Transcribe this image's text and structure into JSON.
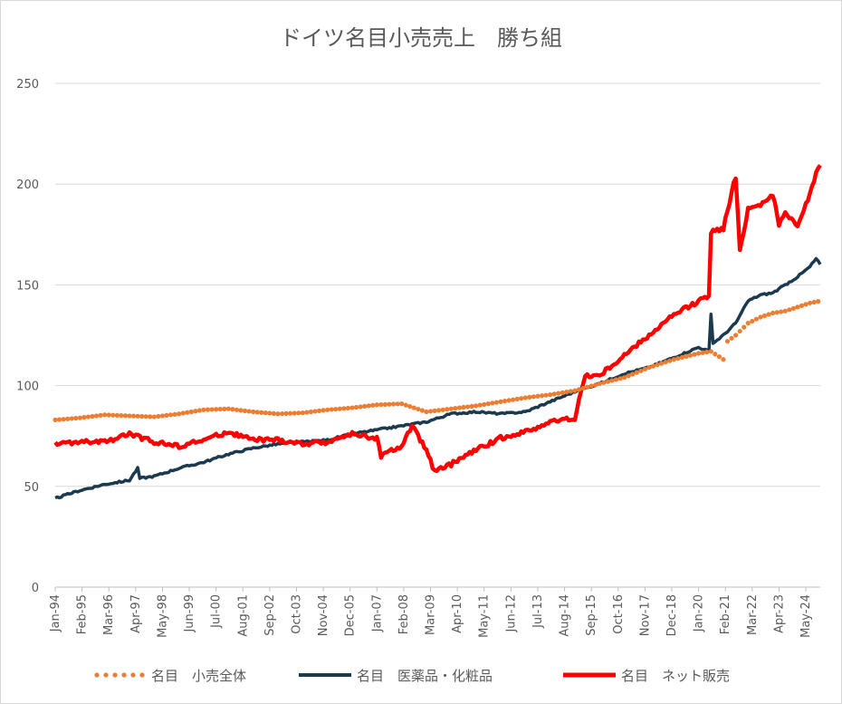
{
  "chart_data": {
    "type": "line",
    "title": "ドイツ名目小売売上　勝ち組",
    "xlabel": "",
    "ylabel": "",
    "ylim": [
      0,
      250
    ],
    "yticks": [
      0,
      50,
      100,
      150,
      200,
      250
    ],
    "grid": true,
    "legend_position": "bottom",
    "x_start": "Jan-94",
    "x_end": "Dec-24",
    "x_tick_labels": [
      "Jan-94",
      "Feb-95",
      "Mar-96",
      "Apr-97",
      "May-98",
      "Jun-99",
      "Jul-00",
      "Aug-01",
      "Sep-02",
      "Oct-03",
      "Nov-04",
      "Dec-05",
      "Jan-07",
      "Feb-08",
      "Mar-09",
      "Apr-10",
      "May-11",
      "Jun-12",
      "Jul-13",
      "Aug-14",
      "Sep-15",
      "Oct-16",
      "Nov-17",
      "Dec-18",
      "Jan-20",
      "Feb-21",
      "Mar-22",
      "Apr-23",
      "May-24"
    ],
    "series": [
      {
        "name": "名目　小売全体",
        "style": "dotted",
        "color": "#ED7D31",
        "points": [
          [
            "Jan-94",
            83
          ],
          [
            "Jan-95",
            84
          ],
          [
            "Jan-96",
            85.5
          ],
          [
            "Jan-97",
            85
          ],
          [
            "Jan-98",
            84.5
          ],
          [
            "Jan-99",
            86
          ],
          [
            "Jan-00",
            88
          ],
          [
            "Jan-01",
            88.5
          ],
          [
            "Jan-02",
            87
          ],
          [
            "Jan-03",
            86
          ],
          [
            "Jan-04",
            86.5
          ],
          [
            "Jan-05",
            88
          ],
          [
            "Jan-06",
            89
          ],
          [
            "Jan-07",
            90.5
          ],
          [
            "Jan-08",
            91
          ],
          [
            "Jan-09",
            87
          ],
          [
            "Jan-10",
            88.5
          ],
          [
            "Jan-11",
            90
          ],
          [
            "Jan-12",
            92
          ],
          [
            "Jan-13",
            94
          ],
          [
            "Jan-14",
            95.5
          ],
          [
            "Jan-15",
            97.5
          ],
          [
            "Jan-16",
            101
          ],
          [
            "Jan-17",
            104
          ],
          [
            "Jan-18",
            109
          ],
          [
            "Jan-19",
            113
          ],
          [
            "Jan-20",
            116
          ],
          [
            "Jul-20",
            117
          ],
          [
            "Jan-21",
            113
          ],
          [
            "Mar-21",
            122
          ],
          [
            "Jul-21",
            125
          ],
          [
            "Jan-22",
            131
          ],
          [
            "Jul-22",
            134
          ],
          [
            "Jan-23",
            136
          ],
          [
            "Jul-23",
            137
          ],
          [
            "Jan-24",
            139
          ],
          [
            "Jul-24",
            141
          ],
          [
            "Dec-24",
            142
          ]
        ]
      },
      {
        "name": "名目　医薬品・化粧品",
        "style": "solid",
        "color": "#1B3A4F",
        "points": [
          [
            "Jan-94",
            44
          ],
          [
            "Jan-95",
            48
          ],
          [
            "Jan-96",
            51
          ],
          [
            "Jan-97",
            53
          ],
          [
            "May-97",
            59
          ],
          [
            "Jun-97",
            54
          ],
          [
            "Jan-98",
            55
          ],
          [
            "Jan-99",
            59
          ],
          [
            "Jan-00",
            62
          ],
          [
            "Jan-01",
            66
          ],
          [
            "Jan-02",
            69
          ],
          [
            "Jan-03",
            71
          ],
          [
            "Jan-04",
            72
          ],
          [
            "Jan-05",
            73
          ],
          [
            "Jan-06",
            76
          ],
          [
            "Jan-07",
            78
          ],
          [
            "Jan-08",
            80
          ],
          [
            "Jan-09",
            82
          ],
          [
            "Jan-10",
            86
          ],
          [
            "Jan-11",
            87
          ],
          [
            "Jan-12",
            86
          ],
          [
            "Jan-13",
            87
          ],
          [
            "Jan-14",
            92
          ],
          [
            "Jan-15",
            97
          ],
          [
            "Jan-16",
            101
          ],
          [
            "Jan-17",
            106
          ],
          [
            "Jan-18",
            109
          ],
          [
            "Jan-19",
            114
          ],
          [
            "Jan-20",
            119
          ],
          [
            "Jun-20",
            117
          ],
          [
            "Jul-20",
            135
          ],
          [
            "Aug-20",
            121
          ],
          [
            "Jan-21",
            125
          ],
          [
            "Jul-21",
            131
          ],
          [
            "Jan-22",
            142
          ],
          [
            "Jul-22",
            145
          ],
          [
            "Jan-23",
            146
          ],
          [
            "Jul-23",
            150
          ],
          [
            "Jan-24",
            154
          ],
          [
            "Jul-24",
            159
          ],
          [
            "Oct-24",
            163
          ],
          [
            "Dec-24",
            160
          ]
        ]
      },
      {
        "name": "名目　ネット販売",
        "style": "solid",
        "color": "#FF0000",
        "points": [
          [
            "Jan-94",
            71
          ],
          [
            "Jan-95",
            72
          ],
          [
            "Jan-96",
            72
          ],
          [
            "Jan-97",
            76
          ],
          [
            "Jan-98",
            72
          ],
          [
            "Jan-99",
            70
          ],
          [
            "Jan-00",
            73
          ],
          [
            "Jan-01",
            77
          ],
          [
            "Jan-02",
            73
          ],
          [
            "Jan-03",
            73
          ],
          [
            "Jan-04",
            71
          ],
          [
            "Jan-05",
            72
          ],
          [
            "Jan-06",
            76
          ],
          [
            "Jan-07",
            74
          ],
          [
            "Mar-07",
            65
          ],
          [
            "Jan-08",
            70
          ],
          [
            "Jun-08",
            80
          ],
          [
            "Jan-09",
            68
          ],
          [
            "May-09",
            57
          ],
          [
            "Jan-10",
            61
          ],
          [
            "Jan-11",
            68
          ],
          [
            "Jan-12",
            74
          ],
          [
            "Jan-13",
            77
          ],
          [
            "Jan-14",
            82
          ],
          [
            "Jan-15",
            84
          ],
          [
            "Jun-15",
            105
          ],
          [
            "Jan-16",
            105
          ],
          [
            "Jan-17",
            115
          ],
          [
            "Jan-18",
            125
          ],
          [
            "Jan-19",
            135
          ],
          [
            "Jan-20",
            142
          ],
          [
            "Jun-20",
            145
          ],
          [
            "Jul-20",
            176
          ],
          [
            "Jan-21",
            178
          ],
          [
            "Jun-21",
            200
          ],
          [
            "Jul-21",
            203
          ],
          [
            "Sep-21",
            167
          ],
          [
            "Jan-22",
            188
          ],
          [
            "Jul-22",
            190
          ],
          [
            "Jan-23",
            195
          ],
          [
            "Apr-23",
            180
          ],
          [
            "Jul-23",
            185
          ],
          [
            "Jan-24",
            180
          ],
          [
            "Jul-24",
            195
          ],
          [
            "Oct-24",
            205
          ],
          [
            "Dec-24",
            210
          ]
        ]
      }
    ]
  }
}
